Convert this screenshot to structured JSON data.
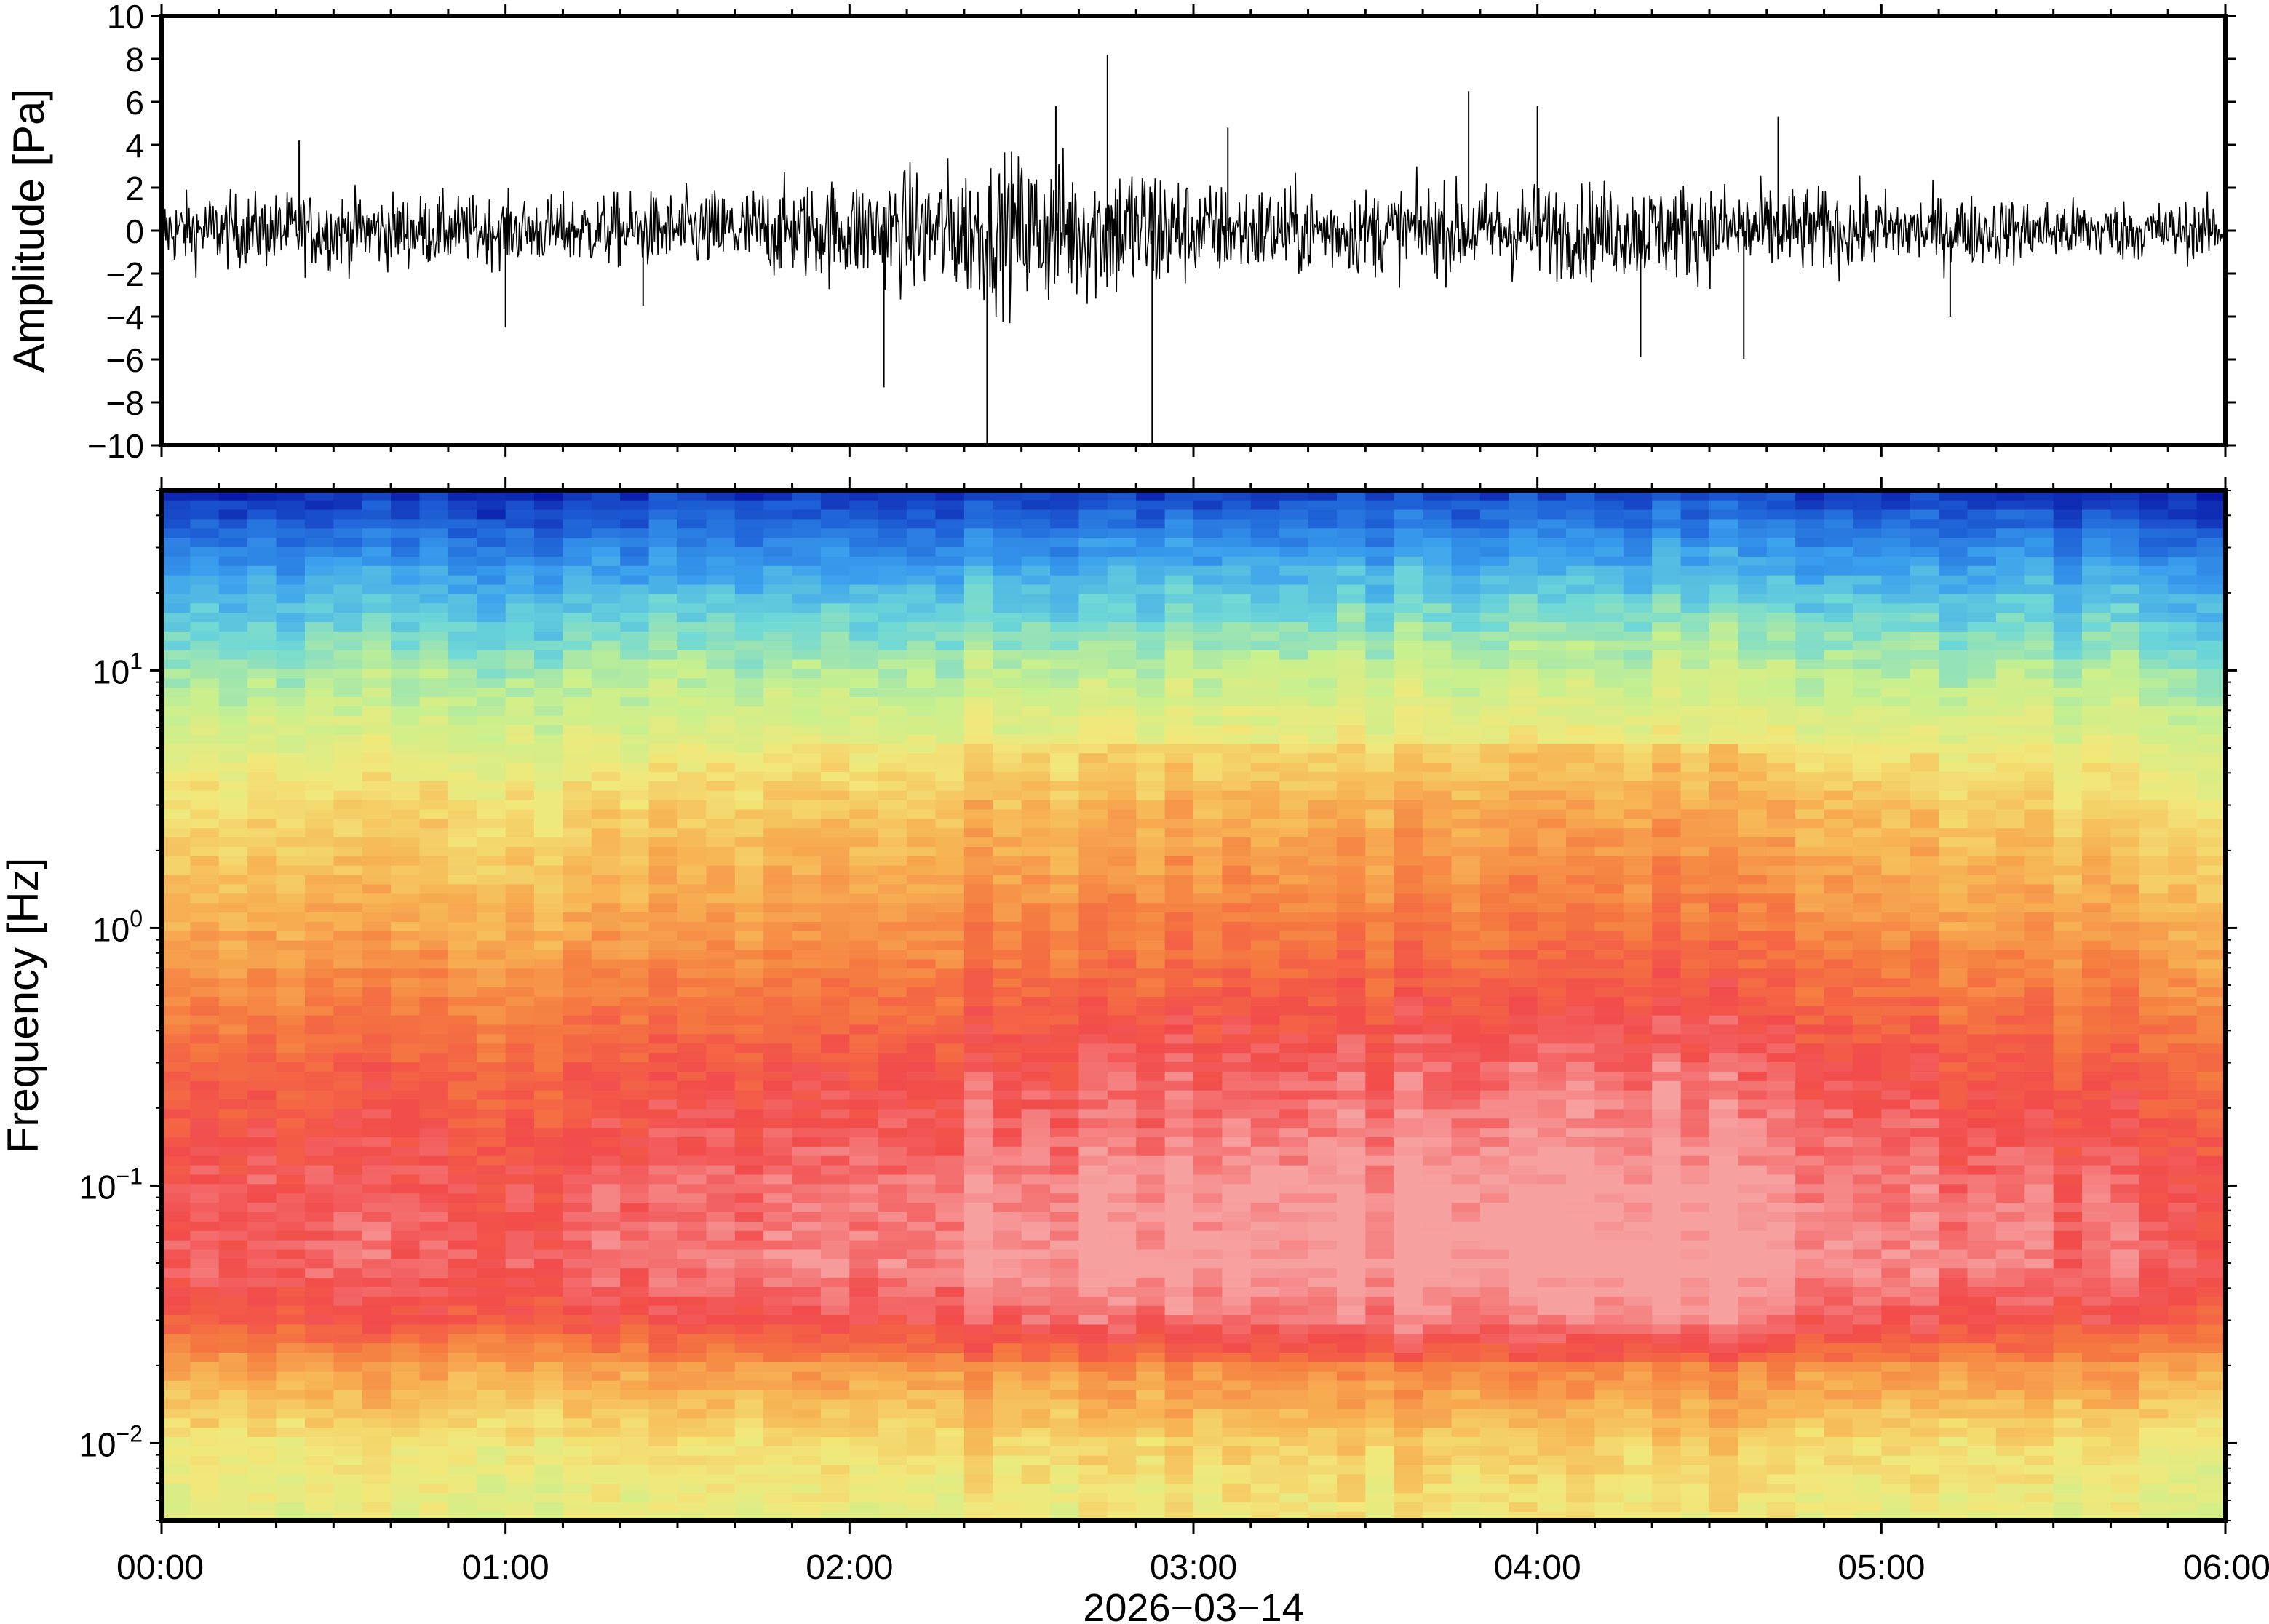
{
  "chart_data": [
    {
      "type": "line",
      "ylabel": "Amplitude [Pa]",
      "ylim": [
        -10,
        10
      ],
      "yticks": [
        "10",
        "8",
        "6",
        "4",
        "2",
        "0",
        "−2",
        "−4",
        "−6",
        "−8",
        "−10"
      ],
      "xlim_hours": [
        0,
        6
      ],
      "series": [
        {
          "color": "#000000",
          "envelope_hours": [
            0,
            0.5,
            1,
            1.5,
            2,
            2.5,
            2.9,
            3,
            3.5,
            4,
            4.5,
            5,
            5.5,
            6
          ],
          "envelope_amplitude": [
            1.5,
            1.6,
            1.4,
            1.6,
            2.2,
            3.2,
            3.0,
            2.0,
            1.8,
            2.0,
            2.0,
            1.6,
            1.3,
            1.2
          ],
          "peak_hours": [
            0.4,
            1.0,
            1.4,
            2.1,
            2.4,
            2.6,
            2.75,
            2.88,
            3.1,
            3.8,
            4.0,
            4.3,
            4.6,
            4.7,
            5.2
          ],
          "peak_values": [
            4.2,
            -4.5,
            -3.5,
            -7.3,
            -10,
            5.8,
            8.2,
            -10,
            4.8,
            6.5,
            5.8,
            -5.9,
            -6.0,
            5.3,
            -4.0
          ]
        }
      ]
    },
    {
      "type": "heatmap",
      "ylabel": "Frequency [Hz]",
      "xlabel": "2026−03−14",
      "xticks": [
        "00:00",
        "01:00",
        "02:00",
        "03:00",
        "04:00",
        "05:00",
        "06:00"
      ],
      "yticks": [
        {
          "base": "10",
          "exp": "1",
          "value": 10
        },
        {
          "base": "10",
          "exp": "0",
          "value": 1
        },
        {
          "base": "10",
          "exp": "−1",
          "value": 0.1
        },
        {
          "base": "10",
          "exp": "−2",
          "value": 0.01
        }
      ],
      "y_scale": "log",
      "ylim": [
        0.005,
        50
      ],
      "xlim_hours": [
        0,
        6
      ],
      "colormap": [
        "#0a1aa8",
        "#1f63d8",
        "#3aa0ee",
        "#6fd8d6",
        "#c8f08e",
        "#f2e87a",
        "#f7b354",
        "#f57a40",
        "#f24b4b",
        "#f7a0a0"
      ],
      "time_bins": 72,
      "power_profile_freq": [
        0.005,
        0.01,
        0.02,
        0.03,
        0.05,
        0.1,
        0.3,
        1,
        3,
        10,
        20,
        35,
        50
      ],
      "power_profile_level": [
        0.5,
        0.56,
        0.7,
        0.85,
        0.92,
        0.9,
        0.82,
        0.68,
        0.58,
        0.4,
        0.26,
        0.12,
        0.02
      ],
      "activity_hours": [
        0,
        0.5,
        1,
        1.5,
        2,
        2.5,
        3,
        3.5,
        4,
        4.5,
        5,
        5.5,
        6
      ],
      "activity_boost": [
        0.0,
        0.01,
        0.0,
        0.02,
        0.05,
        0.08,
        0.09,
        0.1,
        0.12,
        0.12,
        0.06,
        0.02,
        0.0
      ]
    }
  ]
}
